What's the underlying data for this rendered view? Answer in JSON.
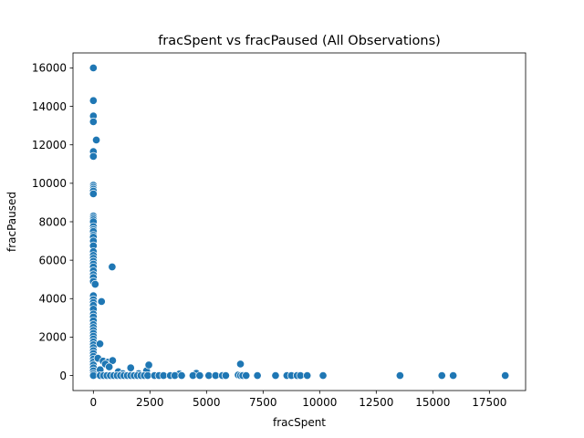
{
  "chart_data": {
    "type": "scatter",
    "title": "fracSpent vs fracPaused (All Observations)",
    "xlabel": "fracSpent",
    "ylabel": "fracPaused",
    "xlim": [
      -900,
      19100
    ],
    "ylim": [
      -780,
      16780
    ],
    "xticks": [
      0,
      2500,
      5000,
      7500,
      10000,
      12500,
      15000,
      17500
    ],
    "yticks": [
      0,
      2000,
      4000,
      6000,
      8000,
      10000,
      12000,
      14000,
      16000
    ],
    "xtick_labels": [
      "0",
      "2500",
      "5000",
      "7500",
      "10000",
      "12500",
      "15000",
      "17500"
    ],
    "ytick_labels": [
      "0",
      "2000",
      "4000",
      "6000",
      "8000",
      "10000",
      "12000",
      "14000",
      "16000"
    ],
    "grid": false,
    "marker_color": "#1f77b4",
    "points": [
      [
        0,
        16000
      ],
      [
        0,
        14300
      ],
      [
        0,
        13500
      ],
      [
        0,
        13200
      ],
      [
        0,
        11650
      ],
      [
        0,
        11400
      ],
      [
        130,
        12250
      ],
      [
        0,
        9900
      ],
      [
        0,
        9800
      ],
      [
        0,
        9700
      ],
      [
        0,
        9600
      ],
      [
        0,
        9450
      ],
      [
        0,
        8300
      ],
      [
        0,
        8200
      ],
      [
        0,
        8100
      ],
      [
        0,
        8000
      ],
      [
        0,
        7750
      ],
      [
        0,
        7600
      ],
      [
        0,
        7500
      ],
      [
        0,
        7300
      ],
      [
        0,
        7200
      ],
      [
        0,
        7000
      ],
      [
        0,
        6750
      ],
      [
        0,
        6450
      ],
      [
        0,
        6250
      ],
      [
        0,
        6100
      ],
      [
        0,
        5950
      ],
      [
        0,
        5800
      ],
      [
        0,
        5650
      ],
      [
        0,
        5450
      ],
      [
        0,
        5250
      ],
      [
        0,
        5100
      ],
      [
        0,
        4900
      ],
      [
        80,
        4750
      ],
      [
        0,
        4150
      ],
      [
        0,
        3950
      ],
      [
        0,
        3800
      ],
      [
        0,
        3650
      ],
      [
        0,
        3450
      ],
      [
        0,
        3200
      ],
      [
        0,
        3050
      ],
      [
        0,
        2850
      ],
      [
        0,
        2650
      ],
      [
        0,
        2500
      ],
      [
        0,
        2350
      ],
      [
        0,
        2200
      ],
      [
        0,
        2050
      ],
      [
        0,
        1900
      ],
      [
        0,
        1750
      ],
      [
        0,
        1600
      ],
      [
        0,
        1450
      ],
      [
        0,
        1300
      ],
      [
        0,
        1150
      ],
      [
        0,
        1000
      ],
      [
        0,
        850
      ],
      [
        0,
        700
      ],
      [
        0,
        550
      ],
      [
        0,
        400
      ],
      [
        0,
        250
      ],
      [
        0,
        100
      ],
      [
        0,
        0
      ],
      [
        830,
        5650
      ],
      [
        360,
        3850
      ],
      [
        290,
        1650
      ],
      [
        200,
        900
      ],
      [
        430,
        750
      ],
      [
        650,
        700
      ],
      [
        850,
        780
      ],
      [
        530,
        600
      ],
      [
        700,
        450
      ],
      [
        300,
        300
      ],
      [
        1100,
        200
      ],
      [
        1650,
        400
      ],
      [
        2350,
        250
      ],
      [
        2450,
        550
      ],
      [
        1300,
        100
      ],
      [
        2000,
        100
      ],
      [
        3800,
        80
      ],
      [
        4550,
        120
      ],
      [
        6500,
        600
      ],
      [
        6400,
        30
      ],
      [
        300,
        0
      ],
      [
        450,
        0
      ],
      [
        600,
        0
      ],
      [
        750,
        0
      ],
      [
        900,
        0
      ],
      [
        1050,
        0
      ],
      [
        1200,
        0
      ],
      [
        1350,
        0
      ],
      [
        1500,
        0
      ],
      [
        1650,
        0
      ],
      [
        1800,
        0
      ],
      [
        1950,
        0
      ],
      [
        2100,
        0
      ],
      [
        2250,
        0
      ],
      [
        2400,
        0
      ],
      [
        2700,
        0
      ],
      [
        2900,
        0
      ],
      [
        3100,
        0
      ],
      [
        3400,
        0
      ],
      [
        3600,
        0
      ],
      [
        3900,
        0
      ],
      [
        4400,
        0
      ],
      [
        4700,
        0
      ],
      [
        5100,
        0
      ],
      [
        5400,
        0
      ],
      [
        5700,
        0
      ],
      [
        5850,
        0
      ],
      [
        6500,
        0
      ],
      [
        6600,
        0
      ],
      [
        6750,
        0
      ],
      [
        7250,
        0
      ],
      [
        8050,
        0
      ],
      [
        8550,
        0
      ],
      [
        8750,
        0
      ],
      [
        9000,
        0
      ],
      [
        9150,
        0
      ],
      [
        9450,
        0
      ],
      [
        10150,
        0
      ],
      [
        13550,
        0
      ],
      [
        15400,
        0
      ],
      [
        15900,
        0
      ],
      [
        18200,
        0
      ]
    ]
  }
}
